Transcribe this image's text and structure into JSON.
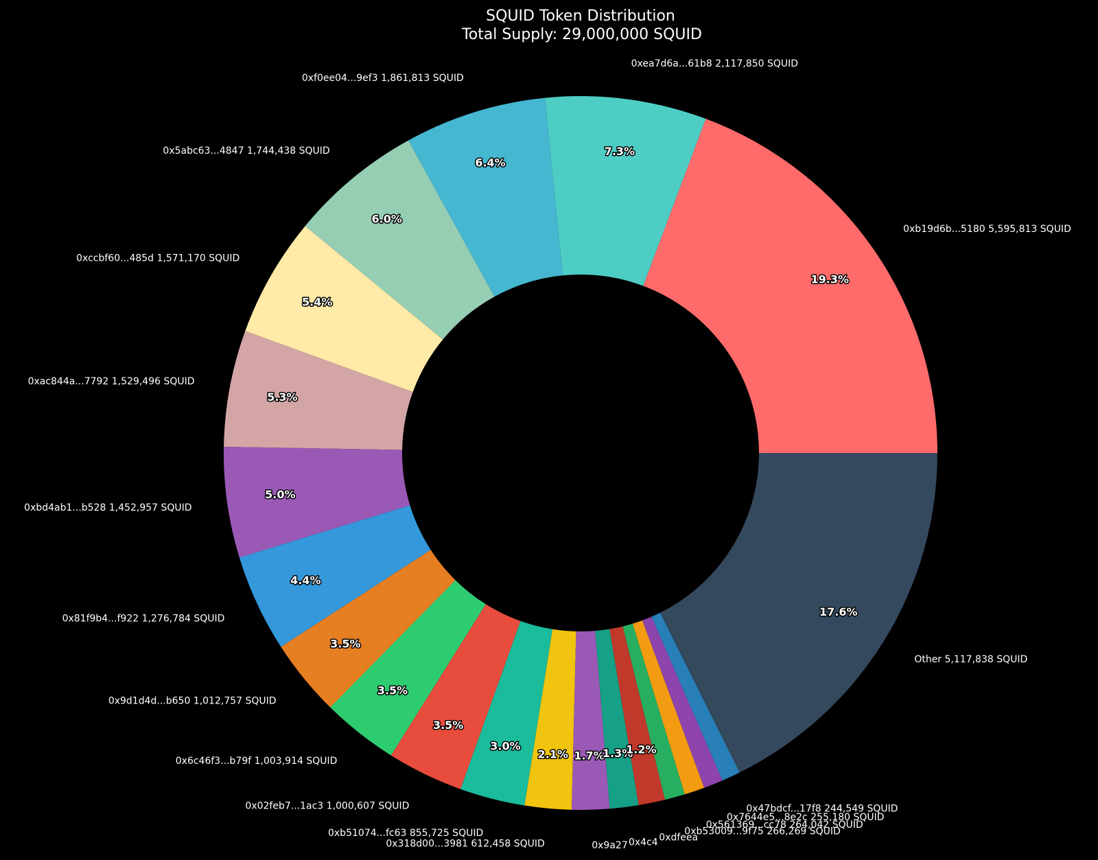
{
  "chart_data": {
    "type": "pie",
    "donut": true,
    "title": "SQUID Token Distribution",
    "subtitle": "Total Supply: 29,000,000 SQUID",
    "slices": [
      {
        "label": "0xb19d6b...5180 5,595,813 SQUID",
        "value": 5595813,
        "pct": "19.3%",
        "color": "#ff6b6b"
      },
      {
        "label": "0xea7d6a...61b8 2,117,850 SQUID",
        "value": 2117850,
        "pct": "7.3%",
        "color": "#4ecdc4"
      },
      {
        "label": "0xf0ee04...9ef3 1,861,813 SQUID",
        "value": 1861813,
        "pct": "6.4%",
        "color": "#45b7d1"
      },
      {
        "label": "0x5abc63...4847 1,744,438 SQUID",
        "value": 1744438,
        "pct": "6.0%",
        "color": "#96ceb4"
      },
      {
        "label": "0xccbf60...485d 1,571,170 SQUID",
        "value": 1571170,
        "pct": "5.4%",
        "color": "#ffeaa7"
      },
      {
        "label": "0xac844a...7792 1,529,496 SQUID",
        "value": 1529496,
        "pct": "5.3%",
        "color": "#d4a5a5"
      },
      {
        "label": "0xbd4ab1...b528 1,452,957 SQUID",
        "value": 1452957,
        "pct": "5.0%",
        "color": "#9b59b6"
      },
      {
        "label": "0x81f9b4...f922 1,276,784 SQUID",
        "value": 1276784,
        "pct": "4.4%",
        "color": "#3498db"
      },
      {
        "label": "0x9d1d4d...b650 1,012,757 SQUID",
        "value": 1012757,
        "pct": "3.5%",
        "color": "#e67e22"
      },
      {
        "label": "0x6c46f3...b79f 1,003,914 SQUID",
        "value": 1003914,
        "pct": "3.5%",
        "color": "#2ecc71"
      },
      {
        "label": "0x02feb7...1ac3 1,000,607 SQUID",
        "value": 1000607,
        "pct": "3.5%",
        "color": "#e74c3c"
      },
      {
        "label": "0xb51074...fc63 855,725 SQUID",
        "value": 855725,
        "pct": "3.0%",
        "color": "#1abc9c"
      },
      {
        "label": "0x318d00...3981 612,458 SQUID",
        "value": 612458,
        "pct": "2.1%",
        "color": "#f1c40f"
      },
      {
        "label": "0x9a27",
        "value": 493000,
        "pct": "1.7%",
        "color": "#9b59b6"
      },
      {
        "label": "0x4c4",
        "value": 377000,
        "pct": "1.3%",
        "color": "#16a085"
      },
      {
        "label": "0xdfeea",
        "value": 348000,
        "pct": "1.2%",
        "color": "#c0392b"
      },
      {
        "label": "0xb53009...9f75 266,269 SQUID",
        "value": 266269,
        "pct": "",
        "color": "#27ae60"
      },
      {
        "label": "0x561369...cc78 264,042 SQUID",
        "value": 264042,
        "pct": "",
        "color": "#f39c12"
      },
      {
        "label": "0x7644e5...8e2c 255,180 SQUID",
        "value": 255180,
        "pct": "",
        "color": "#8e44ad"
      },
      {
        "label": "0x47bdcf...17f8 244,549 SQUID",
        "value": 244549,
        "pct": "",
        "color": "#2980b9"
      },
      {
        "label": "Other 5,117,838 SQUID",
        "value": 5117838,
        "pct": "17.6%",
        "color": "#34495e"
      }
    ],
    "start_angle_deg": 0,
    "direction": "counterclockwise",
    "background": "#000000"
  }
}
